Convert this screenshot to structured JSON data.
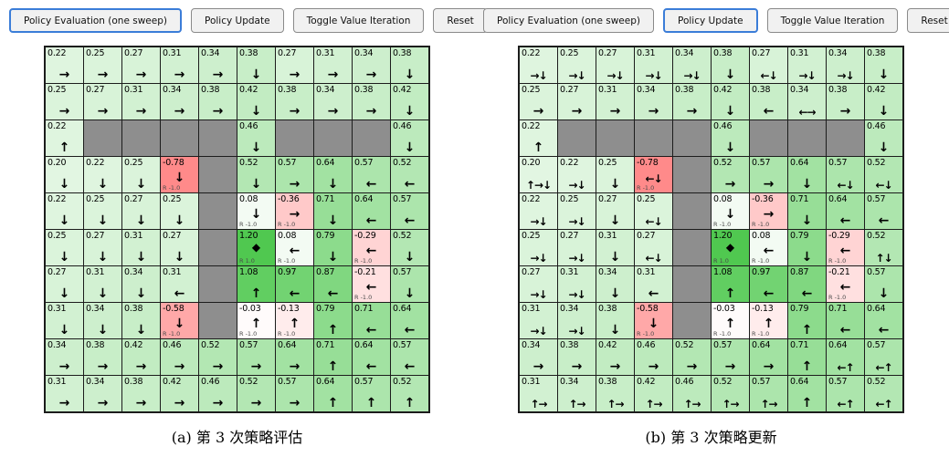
{
  "toolbar": {
    "buttons": [
      "Policy Evaluation (one sweep)",
      "Policy Update",
      "Toggle Value Iteration",
      "Reset"
    ],
    "names": [
      "policy-evaluation-button",
      "policy-update-button",
      "toggle-value-iteration-button",
      "reset-button"
    ]
  },
  "colors": {
    "accent": "#3b7dd8",
    "wall": "#8e8e8e",
    "grid_line": "#1c1c1c",
    "button_bg": "#f1f1f1"
  },
  "glyphs": {
    "goal": "◆"
  },
  "panels": [
    {
      "id": "a",
      "active_button": 0,
      "caption": "(a) 第 3 次策略评估",
      "grid": [
        [
          {
            "v": "0.22",
            "a": "→"
          },
          {
            "v": "0.25",
            "a": "→"
          },
          {
            "v": "0.27",
            "a": "→"
          },
          {
            "v": "0.31",
            "a": "→"
          },
          {
            "v": "0.34",
            "a": "→"
          },
          {
            "v": "0.38",
            "a": "↓"
          },
          {
            "v": "0.27",
            "a": "→"
          },
          {
            "v": "0.31",
            "a": "→"
          },
          {
            "v": "0.34",
            "a": "→"
          },
          {
            "v": "0.38",
            "a": "↓"
          }
        ],
        [
          {
            "v": "0.25",
            "a": "→"
          },
          {
            "v": "0.27",
            "a": "→"
          },
          {
            "v": "0.31",
            "a": "→"
          },
          {
            "v": "0.34",
            "a": "→"
          },
          {
            "v": "0.38",
            "a": "→"
          },
          {
            "v": "0.42",
            "a": "↓"
          },
          {
            "v": "0.38",
            "a": "→"
          },
          {
            "v": "0.34",
            "a": "→"
          },
          {
            "v": "0.38",
            "a": "→"
          },
          {
            "v": "0.42",
            "a": "↓"
          }
        ],
        [
          {
            "v": "0.22",
            "a": "↑"
          },
          {
            "w": 1
          },
          {
            "w": 1
          },
          {
            "w": 1
          },
          {
            "w": 1
          },
          {
            "v": "0.46",
            "a": "↓"
          },
          {
            "w": 1
          },
          {
            "w": 1
          },
          {
            "w": 1
          },
          {
            "v": "0.46",
            "a": "↓"
          }
        ],
        [
          {
            "v": "0.20",
            "a": "↓"
          },
          {
            "v": "0.22",
            "a": "↓"
          },
          {
            "v": "0.25",
            "a": "↓"
          },
          {
            "v": "-0.78",
            "a": "↓",
            "r": "R -1.0"
          },
          {
            "w": 1
          },
          {
            "v": "0.52",
            "a": "↓"
          },
          {
            "v": "0.57",
            "a": "→"
          },
          {
            "v": "0.64",
            "a": "↓"
          },
          {
            "v": "0.57",
            "a": "←"
          },
          {
            "v": "0.52",
            "a": "←"
          }
        ],
        [
          {
            "v": "0.22",
            "a": "↓"
          },
          {
            "v": "0.25",
            "a": "↓"
          },
          {
            "v": "0.27",
            "a": "↓"
          },
          {
            "v": "0.25",
            "a": "↓"
          },
          {
            "w": 1
          },
          {
            "v": "0.08",
            "a": "↓",
            "r": "R -1.0"
          },
          {
            "v": "-0.36",
            "a": "→",
            "r": "R -1.0"
          },
          {
            "v": "0.71",
            "a": "↓"
          },
          {
            "v": "0.64",
            "a": "←"
          },
          {
            "v": "0.57",
            "a": "←"
          }
        ],
        [
          {
            "v": "0.25",
            "a": "↓"
          },
          {
            "v": "0.27",
            "a": "↓"
          },
          {
            "v": "0.31",
            "a": "↓"
          },
          {
            "v": "0.27",
            "a": "↓"
          },
          {
            "w": 1
          },
          {
            "v": "1.20",
            "g": 1,
            "r": "R 1.0"
          },
          {
            "v": "0.08",
            "a": "←",
            "r": "R -1.0"
          },
          {
            "v": "0.79",
            "a": "↓"
          },
          {
            "v": "-0.29",
            "a": "←",
            "r": "R -1.0"
          },
          {
            "v": "0.52",
            "a": "↓"
          }
        ],
        [
          {
            "v": "0.27",
            "a": "↓"
          },
          {
            "v": "0.31",
            "a": "↓"
          },
          {
            "v": "0.34",
            "a": "↓"
          },
          {
            "v": "0.31",
            "a": "←"
          },
          {
            "w": 1
          },
          {
            "v": "1.08",
            "a": "↑"
          },
          {
            "v": "0.97",
            "a": "←"
          },
          {
            "v": "0.87",
            "a": "←"
          },
          {
            "v": "-0.21",
            "a": "←",
            "r": "R -1.0"
          },
          {
            "v": "0.57",
            "a": "↓"
          }
        ],
        [
          {
            "v": "0.31",
            "a": "↓"
          },
          {
            "v": "0.34",
            "a": "↓"
          },
          {
            "v": "0.38",
            "a": "↓"
          },
          {
            "v": "-0.58",
            "a": "↓",
            "r": "R -1.0"
          },
          {
            "w": 1
          },
          {
            "v": "-0.03",
            "a": "↑",
            "r": "R -1.0"
          },
          {
            "v": "-0.13",
            "a": "↑",
            "r": "R -1.0"
          },
          {
            "v": "0.79",
            "a": "↑"
          },
          {
            "v": "0.71",
            "a": "←"
          },
          {
            "v": "0.64",
            "a": "←"
          }
        ],
        [
          {
            "v": "0.34",
            "a": "→"
          },
          {
            "v": "0.38",
            "a": "→"
          },
          {
            "v": "0.42",
            "a": "→"
          },
          {
            "v": "0.46",
            "a": "→"
          },
          {
            "v": "0.52",
            "a": "→"
          },
          {
            "v": "0.57",
            "a": "→"
          },
          {
            "v": "0.64",
            "a": "→"
          },
          {
            "v": "0.71",
            "a": "↑"
          },
          {
            "v": "0.64",
            "a": "←"
          },
          {
            "v": "0.57",
            "a": "←"
          }
        ],
        [
          {
            "v": "0.31",
            "a": "→"
          },
          {
            "v": "0.34",
            "a": "→"
          },
          {
            "v": "0.38",
            "a": "→"
          },
          {
            "v": "0.42",
            "a": "→"
          },
          {
            "v": "0.46",
            "a": "→"
          },
          {
            "v": "0.52",
            "a": "→"
          },
          {
            "v": "0.57",
            "a": "→"
          },
          {
            "v": "0.64",
            "a": "↑"
          },
          {
            "v": "0.57",
            "a": "↑"
          },
          {
            "v": "0.52",
            "a": "↑"
          }
        ]
      ]
    },
    {
      "id": "b",
      "active_button": 1,
      "caption": "(b) 第 3 次策略更新",
      "grid": [
        [
          {
            "v": "0.22",
            "a": "→↓"
          },
          {
            "v": "0.25",
            "a": "→↓"
          },
          {
            "v": "0.27",
            "a": "→↓"
          },
          {
            "v": "0.31",
            "a": "→↓"
          },
          {
            "v": "0.34",
            "a": "→↓"
          },
          {
            "v": "0.38",
            "a": "↓"
          },
          {
            "v": "0.27",
            "a": "←↓"
          },
          {
            "v": "0.31",
            "a": "→↓"
          },
          {
            "v": "0.34",
            "a": "→↓"
          },
          {
            "v": "0.38",
            "a": "↓"
          }
        ],
        [
          {
            "v": "0.25",
            "a": "→"
          },
          {
            "v": "0.27",
            "a": "→"
          },
          {
            "v": "0.31",
            "a": "→"
          },
          {
            "v": "0.34",
            "a": "→"
          },
          {
            "v": "0.38",
            "a": "→"
          },
          {
            "v": "0.42",
            "a": "↓"
          },
          {
            "v": "0.38",
            "a": "←"
          },
          {
            "v": "0.34",
            "a": "←→"
          },
          {
            "v": "0.38",
            "a": "→"
          },
          {
            "v": "0.42",
            "a": "↓"
          }
        ],
        [
          {
            "v": "0.22",
            "a": "↑"
          },
          {
            "w": 1
          },
          {
            "w": 1
          },
          {
            "w": 1
          },
          {
            "w": 1
          },
          {
            "v": "0.46",
            "a": "↓"
          },
          {
            "w": 1
          },
          {
            "w": 1
          },
          {
            "w": 1
          },
          {
            "v": "0.46",
            "a": "↓"
          }
        ],
        [
          {
            "v": "0.20",
            "a": "↑→↓"
          },
          {
            "v": "0.22",
            "a": "→↓"
          },
          {
            "v": "0.25",
            "a": "↓"
          },
          {
            "v": "-0.78",
            "a": "←↓",
            "r": "R -1.0"
          },
          {
            "w": 1
          },
          {
            "v": "0.52",
            "a": "→"
          },
          {
            "v": "0.57",
            "a": "→"
          },
          {
            "v": "0.64",
            "a": "↓"
          },
          {
            "v": "0.57",
            "a": "←↓"
          },
          {
            "v": "0.52",
            "a": "←↓"
          }
        ],
        [
          {
            "v": "0.22",
            "a": "→↓"
          },
          {
            "v": "0.25",
            "a": "→↓"
          },
          {
            "v": "0.27",
            "a": "↓"
          },
          {
            "v": "0.25",
            "a": "←↓"
          },
          {
            "w": 1
          },
          {
            "v": "0.08",
            "a": "↓",
            "r": "R -1.0"
          },
          {
            "v": "-0.36",
            "a": "→",
            "r": "R -1.0"
          },
          {
            "v": "0.71",
            "a": "↓"
          },
          {
            "v": "0.64",
            "a": "←"
          },
          {
            "v": "0.57",
            "a": "←"
          }
        ],
        [
          {
            "v": "0.25",
            "a": "→↓"
          },
          {
            "v": "0.27",
            "a": "→↓"
          },
          {
            "v": "0.31",
            "a": "↓"
          },
          {
            "v": "0.27",
            "a": "←↓"
          },
          {
            "w": 1
          },
          {
            "v": "1.20",
            "g": 1,
            "r": "R 1.0"
          },
          {
            "v": "0.08",
            "a": "←",
            "r": "R -1.0"
          },
          {
            "v": "0.79",
            "a": "↓"
          },
          {
            "v": "-0.29",
            "a": "←",
            "r": "R -1.0"
          },
          {
            "v": "0.52",
            "a": "↑↓"
          }
        ],
        [
          {
            "v": "0.27",
            "a": "→↓"
          },
          {
            "v": "0.31",
            "a": "→↓"
          },
          {
            "v": "0.34",
            "a": "↓"
          },
          {
            "v": "0.31",
            "a": "←"
          },
          {
            "w": 1
          },
          {
            "v": "1.08",
            "a": "↑"
          },
          {
            "v": "0.97",
            "a": "←"
          },
          {
            "v": "0.87",
            "a": "←"
          },
          {
            "v": "-0.21",
            "a": "←",
            "r": "R -1.0"
          },
          {
            "v": "0.57",
            "a": "↓"
          }
        ],
        [
          {
            "v": "0.31",
            "a": "→↓"
          },
          {
            "v": "0.34",
            "a": "→↓"
          },
          {
            "v": "0.38",
            "a": "↓"
          },
          {
            "v": "-0.58",
            "a": "↓",
            "r": "R -1.0"
          },
          {
            "w": 1
          },
          {
            "v": "-0.03",
            "a": "↑",
            "r": "R -1.0"
          },
          {
            "v": "-0.13",
            "a": "↑",
            "r": "R -1.0"
          },
          {
            "v": "0.79",
            "a": "↑"
          },
          {
            "v": "0.71",
            "a": "←"
          },
          {
            "v": "0.64",
            "a": "←"
          }
        ],
        [
          {
            "v": "0.34",
            "a": "→"
          },
          {
            "v": "0.38",
            "a": "→"
          },
          {
            "v": "0.42",
            "a": "→"
          },
          {
            "v": "0.46",
            "a": "→"
          },
          {
            "v": "0.52",
            "a": "→"
          },
          {
            "v": "0.57",
            "a": "→"
          },
          {
            "v": "0.64",
            "a": "→"
          },
          {
            "v": "0.71",
            "a": "↑"
          },
          {
            "v": "0.64",
            "a": "←↑"
          },
          {
            "v": "0.57",
            "a": "←↑"
          }
        ],
        [
          {
            "v": "0.31",
            "a": "↑→"
          },
          {
            "v": "0.34",
            "a": "↑→"
          },
          {
            "v": "0.38",
            "a": "↑→"
          },
          {
            "v": "0.42",
            "a": "↑→"
          },
          {
            "v": "0.46",
            "a": "↑→"
          },
          {
            "v": "0.52",
            "a": "↑→"
          },
          {
            "v": "0.57",
            "a": "↑→"
          },
          {
            "v": "0.64",
            "a": "↑"
          },
          {
            "v": "0.57",
            "a": "←↑"
          },
          {
            "v": "0.52",
            "a": "←↑"
          }
        ]
      ]
    }
  ]
}
